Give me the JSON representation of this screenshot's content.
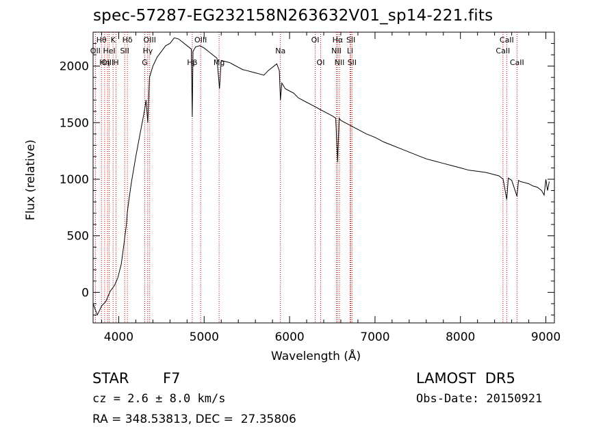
{
  "chart_data": {
    "type": "line",
    "title": "spec-57287-EG232158N263632V01_sp14-221.fits",
    "xlabel": "Wavelength (Å)",
    "ylabel": "Flux (relative)",
    "xlim": [
      3700,
      9100
    ],
    "ylim": [
      -270,
      2300
    ],
    "xticks": [
      "4000",
      "5000",
      "6000",
      "7000",
      "8000",
      "9000"
    ],
    "yticks": [
      "0",
      "500",
      "1000",
      "1500",
      "2000"
    ],
    "grid": false,
    "series": [
      {
        "x": [
          3700,
          3750,
          3800,
          3850,
          3900,
          3950,
          3990,
          4030,
          4060,
          4090,
          4100,
          4120,
          4150,
          4200,
          4250,
          4300,
          4320,
          4340,
          4360,
          4400,
          4450,
          4500,
          4550,
          4600,
          4650,
          4700,
          4750,
          4800,
          4850,
          4861,
          4870,
          4900,
          4950,
          5000,
          5050,
          5100,
          5150,
          5180,
          5200,
          5250,
          5300,
          5350,
          5400,
          5450,
          5500,
          5550,
          5600,
          5650,
          5700,
          5750,
          5800,
          5850,
          5880,
          5893,
          5910,
          5950,
          6000,
          6050,
          6100,
          6150,
          6200,
          6250,
          6300,
          6350,
          6400,
          6450,
          6500,
          6540,
          6563,
          6580,
          6600,
          6650,
          6700,
          6750,
          6800,
          6900,
          7000,
          7100,
          7200,
          7300,
          7400,
          7500,
          7600,
          7700,
          7800,
          7900,
          8000,
          8100,
          8200,
          8300,
          8400,
          8450,
          8500,
          8542,
          8560,
          8600,
          8662,
          8680,
          8700,
          8750,
          8800,
          8850,
          8900,
          8950,
          8980,
          9000,
          9020,
          9040
        ],
        "y": [
          -100,
          -200,
          -120,
          -80,
          10,
          60,
          130,
          250,
          420,
          600,
          700,
          820,
          980,
          1200,
          1400,
          1600,
          1700,
          1500,
          1900,
          2000,
          2080,
          2130,
          2180,
          2200,
          2250,
          2240,
          2210,
          2180,
          2150,
          1550,
          2130,
          2170,
          2180,
          2160,
          2130,
          2100,
          2070,
          1800,
          2050,
          2040,
          2030,
          2010,
          1990,
          1970,
          1960,
          1950,
          1940,
          1930,
          1920,
          1960,
          1990,
          2020,
          1960,
          1700,
          1850,
          1800,
          1780,
          1760,
          1720,
          1700,
          1680,
          1660,
          1640,
          1620,
          1600,
          1580,
          1560,
          1540,
          1150,
          1540,
          1520,
          1500,
          1480,
          1460,
          1440,
          1400,
          1370,
          1330,
          1300,
          1270,
          1240,
          1210,
          1180,
          1160,
          1140,
          1120,
          1100,
          1080,
          1070,
          1060,
          1040,
          1030,
          1000,
          820,
          1010,
          990,
          850,
          990,
          980,
          970,
          960,
          940,
          930,
          900,
          860,
          1000,
          900,
          980
        ]
      }
    ],
    "lines": [
      {
        "name": "Hθ",
        "x": 3798,
        "row": 1
      },
      {
        "name": "OII",
        "x": 3727,
        "row": 2
      },
      {
        "name": "OIII",
        "x": 3869,
        "row": 3
      },
      {
        "name": "Hη",
        "x": 3835,
        "row": 3
      },
      {
        "name": "K",
        "x": 3934,
        "row": 1
      },
      {
        "name": "HeI",
        "x": 3889,
        "row": 2
      },
      {
        "name": "H",
        "x": 3969,
        "row": 3
      },
      {
        "name": "Hδ",
        "x": 4102,
        "row": 1
      },
      {
        "name": "SII",
        "x": 4070,
        "row": 2
      },
      {
        "name": "OIII",
        "x": 4363,
        "row": 1
      },
      {
        "name": "Hγ",
        "x": 4340,
        "row": 2
      },
      {
        "name": "G",
        "x": 4305,
        "row": 3
      },
      {
        "name": "OIII",
        "x": 4959,
        "row": 1
      },
      {
        "name": "Hβ",
        "x": 4861,
        "row": 3
      },
      {
        "name": "Mg",
        "x": 5175,
        "row": 3
      },
      {
        "name": "Na",
        "x": 5893,
        "row": 2
      },
      {
        "name": "OI",
        "x": 6300,
        "row": 1
      },
      {
        "name": "OI",
        "x": 6364,
        "row": 3
      },
      {
        "name": "Hα",
        "x": 6563,
        "row": 1
      },
      {
        "name": "NII",
        "x": 6548,
        "row": 2
      },
      {
        "name": "NII",
        "x": 6584,
        "row": 3
      },
      {
        "name": "SII",
        "x": 6717,
        "row": 1
      },
      {
        "name": "Li",
        "x": 6708,
        "row": 2
      },
      {
        "name": "SII",
        "x": 6731,
        "row": 3
      },
      {
        "name": "CaII",
        "x": 8542,
        "row": 1
      },
      {
        "name": "CaII",
        "x": 8498,
        "row": 2
      },
      {
        "name": "CaII",
        "x": 8662,
        "row": 3
      }
    ]
  },
  "info": {
    "object_class": "STAR",
    "subclass": "F7",
    "survey": "LAMOST  DR5",
    "cz": "cz = 2.6 ± 8.0 km/s",
    "obs_date": "Obs-Date: 20150921",
    "coords": "RA = 348.53813, DEC =  27.35806"
  }
}
